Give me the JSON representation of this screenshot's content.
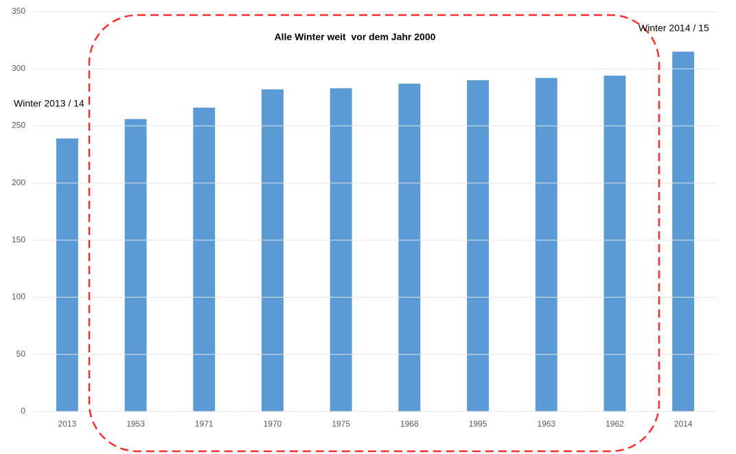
{
  "chart_data": {
    "type": "bar",
    "categories": [
      "2013",
      "1953",
      "1971",
      "1970",
      "1975",
      "1968",
      "1995",
      "1963",
      "1962",
      "2014"
    ],
    "values": [
      239,
      256,
      266,
      282,
      283,
      287,
      290,
      292,
      294,
      315
    ],
    "color": "#5b9bd5",
    "ylim": [
      0,
      350
    ],
    "yticks": [
      0,
      50,
      100,
      150,
      200,
      250,
      300,
      350
    ],
    "grid": true,
    "annotations": [
      "Alle Winter weit  vor dem Jahr 2000",
      "Winter 2013 / 14",
      "Winter 2014 / 15"
    ]
  }
}
